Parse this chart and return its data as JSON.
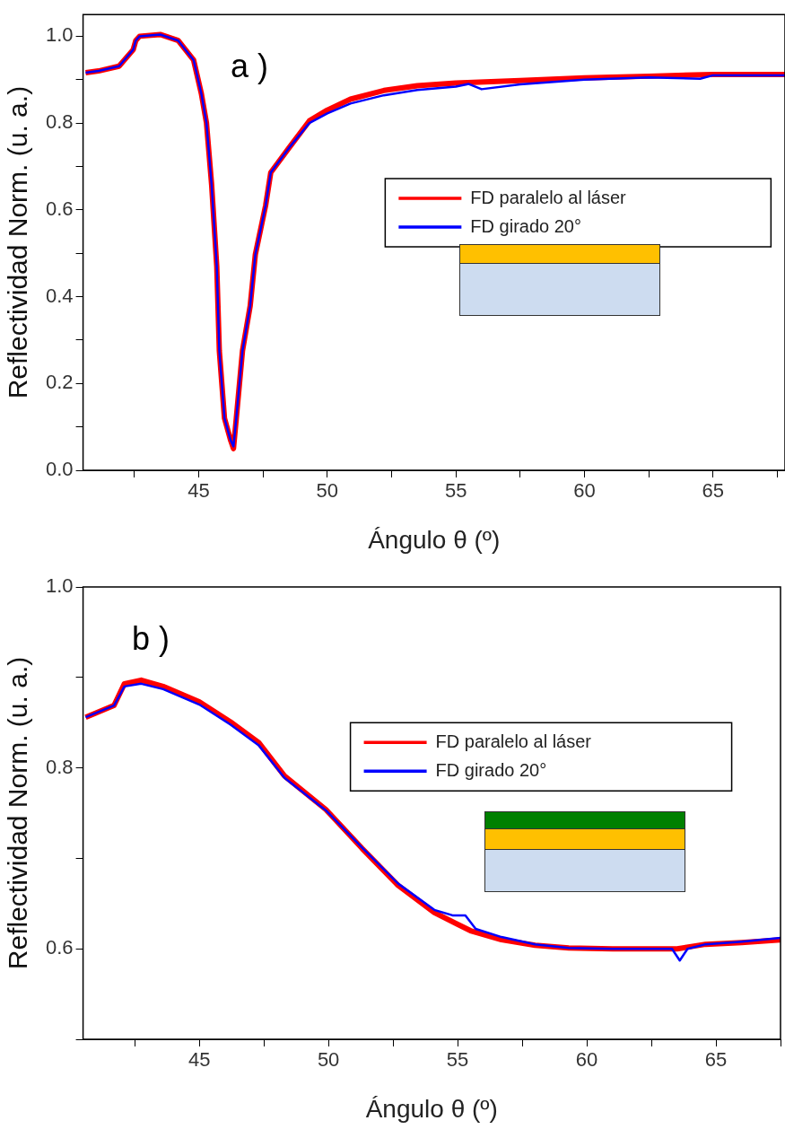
{
  "chart_data": [
    {
      "type": "line",
      "xlabel": "Ángulo θ (º)",
      "ylabel": "Reflectividad Norm. (u. a.)",
      "annotations": [
        "a )"
      ],
      "legend": "right",
      "grid": false,
      "marker": "none",
      "line_style": "solid",
      "xlim": [
        40.5,
        67.8
      ],
      "xticks": [
        {
          "value": 42.5,
          "label": null
        },
        45,
        {
          "value": 47.5,
          "label": null
        },
        50,
        {
          "value": 52.5,
          "label": null
        },
        55,
        {
          "value": 57.5,
          "label": null
        },
        60,
        {
          "value": 62.5,
          "label": null
        },
        65,
        {
          "value": 67.5,
          "label": null
        }
      ],
      "ylim": [
        0,
        1.05
      ],
      "yticks": [
        {
          "value": 0,
          "label": "0.0"
        },
        {
          "value": 0.1,
          "label": null
        },
        0.2,
        {
          "value": 0.3,
          "label": null
        },
        0.4,
        {
          "value": 0.5,
          "label": null
        },
        0.6,
        {
          "value": 0.7,
          "label": null
        },
        0.8,
        {
          "value": 0.9,
          "label": null
        },
        {
          "value": 1,
          "label": "1.0"
        }
      ],
      "series": [
        {
          "name": "FD paralelo al láser",
          "color": "#ff0000",
          "x": [
            40.6,
            41.1,
            41.9,
            42.45,
            42.55,
            42.7,
            43.5,
            44.2,
            44.8,
            45.1,
            45.3,
            45.5,
            45.7,
            45.8,
            46,
            46.23,
            46.35,
            46.46,
            46.7,
            47,
            47.2,
            47.6,
            47.8,
            48.5,
            49.3,
            50,
            50.9,
            52.2,
            53.5,
            55,
            57.5,
            60,
            62.5,
            65,
            67.8
          ],
          "values": [
            0.916,
            0.92,
            0.931,
            0.969,
            0.99,
            1,
            1.004,
            0.99,
            0.945,
            0.868,
            0.8,
            0.658,
            0.47,
            0.275,
            0.12,
            0.071,
            0.05,
            0.12,
            0.275,
            0.379,
            0.497,
            0.61,
            0.686,
            0.742,
            0.805,
            0.83,
            0.855,
            0.875,
            0.886,
            0.892,
            0.898,
            0.904,
            0.908,
            0.912,
            0.912
          ]
        },
        {
          "name": "FD girado 20°",
          "color": "#0000ff",
          "x": [
            40.6,
            41.1,
            41.9,
            42.45,
            42.55,
            42.7,
            43.5,
            44.2,
            44.8,
            45.1,
            45.3,
            45.5,
            45.7,
            45.8,
            46,
            46.23,
            46.35,
            46.46,
            46.7,
            47,
            47.2,
            47.6,
            47.8,
            48.5,
            49.3,
            50,
            50.9,
            52.2,
            53.5,
            55,
            55.5,
            56,
            57.5,
            60,
            62.5,
            64.5,
            65,
            67.8
          ],
          "values": [
            0.916,
            0.92,
            0.931,
            0.969,
            0.99,
            1,
            1.004,
            0.99,
            0.945,
            0.868,
            0.8,
            0.658,
            0.47,
            0.275,
            0.12,
            0.071,
            0.055,
            0.12,
            0.275,
            0.379,
            0.497,
            0.61,
            0.686,
            0.742,
            0.8,
            0.822,
            0.845,
            0.864,
            0.876,
            0.884,
            0.89,
            0.878,
            0.889,
            0.9,
            0.905,
            0.902,
            0.91,
            0.91
          ]
        }
      ]
    },
    {
      "type": "line",
      "xlabel": "Ángulo θ (º)",
      "ylabel": "Reflectividad Norm. (u. a.)",
      "annotations": [
        "b )"
      ],
      "legend": "top right",
      "grid": false,
      "marker": "none",
      "line_style": "solid",
      "xlim": [
        40.5,
        67.5
      ],
      "xticks": [
        {
          "value": 42.5,
          "label": null
        },
        45,
        {
          "value": 47.5,
          "label": null
        },
        50,
        {
          "value": 52.5,
          "label": null
        },
        55,
        {
          "value": 57.5,
          "label": null
        },
        60,
        {
          "value": 62.5,
          "label": null
        },
        65,
        {
          "value": 67.5,
          "label": null
        }
      ],
      "ylim": [
        0.5,
        1.0
      ],
      "yticks": [
        {
          "value": 0.5,
          "label": null
        },
        0.6,
        {
          "value": 0.7,
          "label": null
        },
        0.8,
        {
          "value": 0.9,
          "label": null
        },
        {
          "value": 1,
          "label": "1.0"
        }
      ],
      "series": [
        {
          "name": "FD paralelo al láser",
          "color": "#ff0000",
          "x": [
            40.6,
            41.7,
            42.1,
            42.75,
            43.6,
            45,
            46.2,
            47.3,
            48.3,
            49.9,
            51.3,
            52.7,
            54.1,
            55.5,
            56.7,
            58,
            59.3,
            61,
            63.5,
            64.6,
            66,
            67.5
          ],
          "values": [
            0.856,
            0.869,
            0.893,
            0.897,
            0.89,
            0.873,
            0.851,
            0.828,
            0.791,
            0.754,
            0.711,
            0.67,
            0.64,
            0.62,
            0.61,
            0.604,
            0.601,
            0.6,
            0.6,
            0.605,
            0.607,
            0.61
          ]
        },
        {
          "name": "FD girado 20°",
          "color": "#0000ff",
          "x": [
            40.6,
            41.7,
            42.1,
            42.75,
            43.6,
            45,
            46.2,
            47.3,
            48.3,
            49.9,
            51.3,
            52.7,
            54.1,
            54.8,
            55.3,
            55.7,
            56.7,
            58,
            59.3,
            61,
            63.3,
            63.6,
            63.9,
            64.6,
            66,
            67.5
          ],
          "values": [
            0.856,
            0.869,
            0.89,
            0.893,
            0.887,
            0.87,
            0.848,
            0.825,
            0.789,
            0.753,
            0.712,
            0.672,
            0.643,
            0.637,
            0.637,
            0.622,
            0.613,
            0.605,
            0.601,
            0.6,
            0.6,
            0.587,
            0.6,
            0.605,
            0.608,
            0.612
          ]
        }
      ]
    }
  ]
}
